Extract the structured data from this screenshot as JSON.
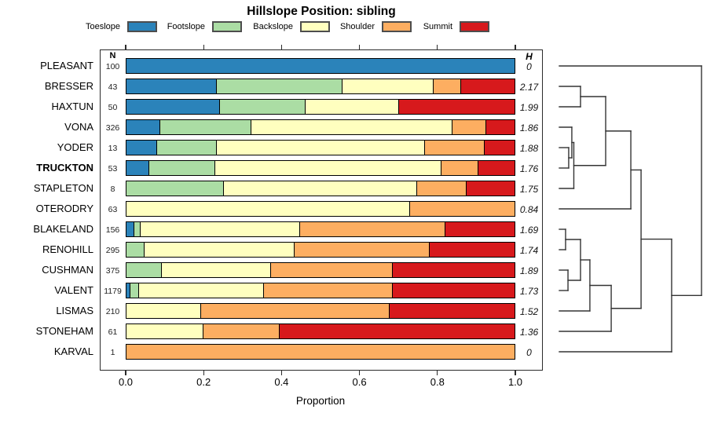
{
  "title": "Hillslope Position: sibling",
  "legend": {
    "items": [
      {
        "label": "Toeslope",
        "color": "#2B83BA"
      },
      {
        "label": "Footslope",
        "color": "#ABDDA4"
      },
      {
        "label": "Backslope",
        "color": "#FFFFBF"
      },
      {
        "label": "Shoulder",
        "color": "#FDAE61"
      },
      {
        "label": "Summit",
        "color": "#D7191C"
      }
    ]
  },
  "columns": {
    "n_header": "N",
    "h_header": "H"
  },
  "axis": {
    "label": "Proportion",
    "ticks": [
      "0.0",
      "0.2",
      "0.4",
      "0.6",
      "0.8",
      "1.0"
    ]
  },
  "chart_data": {
    "type": "bar",
    "stacked": true,
    "orientation": "horizontal",
    "title": "Hillslope Position: sibling",
    "xlabel": "Proportion",
    "xlim": [
      0,
      1
    ],
    "series_names": [
      "Toeslope",
      "Footslope",
      "Backslope",
      "Shoulder",
      "Summit"
    ],
    "series_colors": [
      "#2B83BA",
      "#ABDDA4",
      "#FFFFBF",
      "#FDAE61",
      "#D7191C"
    ],
    "rows": [
      {
        "label": "PLEASANT",
        "bold": false,
        "n": 100,
        "h": "0",
        "proportions": [
          1,
          0,
          0,
          0,
          0
        ]
      },
      {
        "label": "BRESSER",
        "bold": false,
        "n": 43,
        "h": "2.17",
        "proportions": [
          0.232,
          0.326,
          0.233,
          0.07,
          0.139
        ]
      },
      {
        "label": "HAXTUN",
        "bold": false,
        "n": 50,
        "h": "1.99",
        "proportions": [
          0.24,
          0.22,
          0.24,
          0,
          0.3
        ]
      },
      {
        "label": "VONA",
        "bold": false,
        "n": 326,
        "h": "1.86",
        "proportions": [
          0.086,
          0.234,
          0.521,
          0.085,
          0.074
        ]
      },
      {
        "label": "YODER",
        "bold": false,
        "n": 13,
        "h": "1.88",
        "proportions": [
          0.077,
          0.154,
          0.538,
          0.154,
          0.077
        ]
      },
      {
        "label": "TRUCKTON",
        "bold": true,
        "n": 53,
        "h": "1.76",
        "proportions": [
          0.057,
          0.17,
          0.585,
          0.094,
          0.094
        ]
      },
      {
        "label": "STAPLETON",
        "bold": false,
        "n": 8,
        "h": "1.75",
        "proportions": [
          0,
          0.25,
          0.5,
          0.125,
          0.125
        ]
      },
      {
        "label": "OTERODRY",
        "bold": false,
        "n": 63,
        "h": "0.84",
        "proportions": [
          0,
          0,
          0.73,
          0.27,
          0
        ]
      },
      {
        "label": "BLAKELAND",
        "bold": false,
        "n": 156,
        "h": "1.69",
        "proportions": [
          0.019,
          0.013,
          0.413,
          0.376,
          0.179
        ]
      },
      {
        "label": "RENOHILL",
        "bold": false,
        "n": 295,
        "h": "1.74",
        "proportions": [
          0,
          0.045,
          0.386,
          0.35,
          0.219
        ]
      },
      {
        "label": "CUSHMAN",
        "bold": false,
        "n": 375,
        "h": "1.89",
        "proportions": [
          0,
          0.089,
          0.281,
          0.315,
          0.315
        ]
      },
      {
        "label": "VALENT",
        "bold": false,
        "n": 1179,
        "h": "1.73",
        "proportions": [
          0.009,
          0.02,
          0.321,
          0.333,
          0.317
        ]
      },
      {
        "label": "LISMAS",
        "bold": false,
        "n": 210,
        "h": "1.52",
        "proportions": [
          0,
          0,
          0.192,
          0.484,
          0.324
        ]
      },
      {
        "label": "STONEHAM",
        "bold": false,
        "n": 61,
        "h": "1.36",
        "proportions": [
          0,
          0,
          0.197,
          0.195,
          0.608
        ]
      },
      {
        "label": "KARVAL",
        "bold": false,
        "n": 1,
        "h": "0",
        "proportions": [
          0,
          0,
          0,
          1,
          0
        ]
      }
    ],
    "dendrogram": {
      "note": "heights normalized 0=leaf tip, 1=root; leaf = row index",
      "tree": {
        "h": 1.0,
        "c": [
          {
            "leaf": 0
          },
          {
            "h": 0.79,
            "c": [
              {
                "h": 0.575,
                "c": [
                  {
                    "h": 0.503,
                    "c": [
                      {
                        "h": 0.326,
                        "c": [
                          {
                            "h": 0.149,
                            "c": [
                              {
                                "leaf": 1
                              },
                              {
                                "leaf": 2
                              }
                            ]
                          },
                          {
                            "h": 0.102,
                            "c": [
                              {
                                "h": 0.088,
                                "c": [
                                  {
                                    "leaf": 3
                                  },
                                  {
                                    "h": 0.066,
                                    "c": [
                                      {
                                        "leaf": 4
                                      },
                                      {
                                        "leaf": 5
                                      }
                                    ]
                                  }
                                ]
                              },
                              {
                                "leaf": 6
                              }
                            ]
                          }
                        ]
                      },
                      {
                        "leaf": 7
                      }
                    ]
                  },
                  {
                    "h": 0.365,
                    "c": [
                      {
                        "h": 0.215,
                        "c": [
                          {
                            "h": 0.149,
                            "c": [
                              {
                                "h": 0.044,
                                "c": [
                                  {
                                    "leaf": 8
                                  },
                                  {
                                    "leaf": 9
                                  }
                                ]
                              },
                              {
                                "h": 0.061,
                                "c": [
                                  {
                                    "leaf": 10
                                  },
                                  {
                                    "leaf": 11
                                  }
                                ]
                              }
                            ]
                          },
                          {
                            "leaf": 12
                          }
                        ]
                      },
                      {
                        "leaf": 13
                      }
                    ]
                  }
                ]
              },
              {
                "leaf": 14
              }
            ]
          }
        ]
      }
    }
  }
}
